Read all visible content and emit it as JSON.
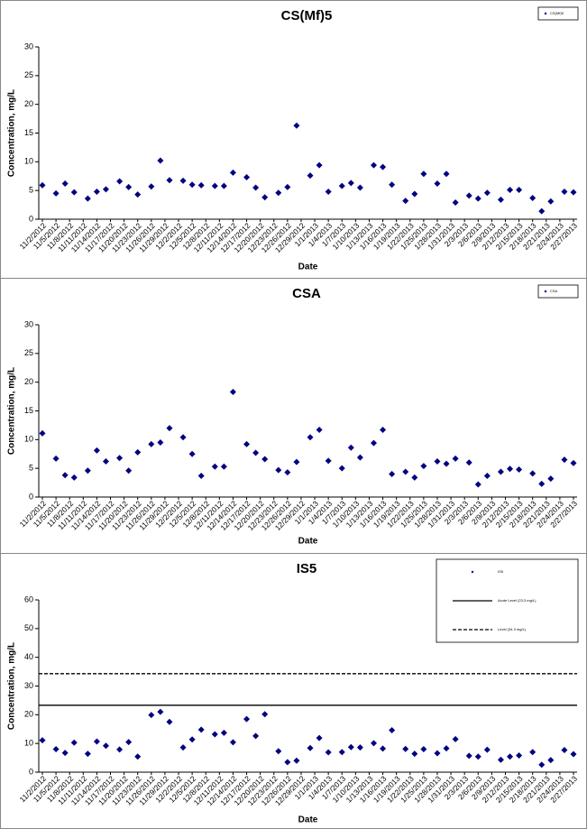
{
  "chart_data": [
    {
      "type": "scatter",
      "title": "CS(Mf)5",
      "xlabel": "Date",
      "ylabel": "Concentration, mg/L",
      "legend": "upper right",
      "x": [
        "11/2/2012",
        "11/5/2012",
        "11/7/2012",
        "11/9/2012",
        "11/12/2012",
        "11/14/2012",
        "11/16/2012",
        "11/19/2012",
        "11/21/2012",
        "11/23/2012",
        "11/26/2012",
        "11/28/2012",
        "11/30/2012",
        "12/3/2012",
        "12/5/2012",
        "12/7/2012",
        "12/10/2012",
        "12/12/2012",
        "12/14/2012",
        "12/17/2012",
        "12/19/2012",
        "12/21/2012",
        "12/24/2012",
        "12/26/2012",
        "12/28/2012",
        "12/31/2012",
        "1/2/2013",
        "1/4/2013",
        "1/7/2013",
        "1/9/2013",
        "1/11/2013",
        "1/14/2013",
        "1/16/2013",
        "1/18/2013",
        "1/21/2013",
        "1/23/2013",
        "1/25/2013",
        "1/28/2013",
        "1/30/2013",
        "2/1/2013",
        "2/4/2013",
        "2/6/2013",
        "2/8/2013",
        "2/11/2013",
        "2/13/2013",
        "2/15/2013",
        "2/18/2013",
        "2/20/2013",
        "2/22/2013",
        "2/25/2013",
        "2/27/2013"
      ],
      "series": [
        {
          "name": "CS(Mf)5",
          "color": "#000080",
          "values": [
            5.9,
            4.5,
            6.2,
            4.7,
            3.6,
            4.8,
            5.2,
            6.6,
            5.6,
            4.3,
            5.7,
            10.2,
            6.8,
            6.7,
            6.0,
            5.9,
            5.8,
            5.8,
            8.1,
            7.3,
            5.5,
            3.8,
            4.6,
            5.6,
            16.3,
            7.6,
            9.4,
            4.8,
            5.8,
            6.3,
            5.5,
            9.4,
            9.1,
            6.0,
            3.2,
            4.4,
            7.9,
            6.2,
            7.9,
            2.9,
            4.1,
            3.6,
            4.6,
            3.4,
            5.1,
            5.1,
            3.7,
            1.4,
            3.1,
            4.8,
            4.7
          ]
        }
      ],
      "xlim": [
        "11/2/2012",
        "2/27/2013"
      ],
      "xticks": [
        "11/2/2012",
        "11/5/2012",
        "11/8/2012",
        "11/11/2012",
        "11/14/2012",
        "11/17/2012",
        "11/20/2012",
        "11/23/2012",
        "11/26/2012",
        "11/29/2012",
        "12/2/2012",
        "12/5/2012",
        "12/8/2012",
        "12/11/2012",
        "12/14/2012",
        "12/17/2012",
        "12/20/2012",
        "12/23/2012",
        "12/26/2012",
        "12/29/2012",
        "1/1/2013",
        "1/4/2013",
        "1/7/2013",
        "1/10/2013",
        "1/13/2013",
        "1/16/2013",
        "1/19/2013",
        "1/22/2013",
        "1/25/2013",
        "1/28/2013",
        "1/31/2013",
        "2/3/2013",
        "2/6/2013",
        "2/9/2013",
        "2/12/2013",
        "2/15/2013",
        "2/18/2013",
        "2/21/2013",
        "2/24/2013",
        "2/27/2013"
      ],
      "ylim": [
        0,
        30
      ],
      "yticks": [
        0,
        5,
        10,
        15,
        20,
        25,
        30
      ]
    },
    {
      "type": "scatter",
      "title": "CSA",
      "xlabel": "Date",
      "ylabel": "Concentration, mg/L",
      "legend": "upper right",
      "x": [
        "11/2/2012",
        "11/5/2012",
        "11/7/2012",
        "11/9/2012",
        "11/12/2012",
        "11/14/2012",
        "11/16/2012",
        "11/19/2012",
        "11/21/2012",
        "11/23/2012",
        "11/26/2012",
        "11/28/2012",
        "11/30/2012",
        "12/3/2012",
        "12/5/2012",
        "12/7/2012",
        "12/10/2012",
        "12/12/2012",
        "12/14/2012",
        "12/17/2012",
        "12/19/2012",
        "12/21/2012",
        "12/24/2012",
        "12/26/2012",
        "12/28/2012",
        "12/31/2012",
        "1/2/2013",
        "1/4/2013",
        "1/7/2013",
        "1/9/2013",
        "1/11/2013",
        "1/14/2013",
        "1/16/2013",
        "1/18/2013",
        "1/21/2013",
        "1/23/2013",
        "1/25/2013",
        "1/28/2013",
        "1/30/2013",
        "2/1/2013",
        "2/4/2013",
        "2/6/2013",
        "2/8/2013",
        "2/11/2013",
        "2/13/2013",
        "2/15/2013",
        "2/18/2013",
        "2/20/2013",
        "2/22/2013",
        "2/25/2013",
        "2/27/2013"
      ],
      "series": [
        {
          "name": "CSA",
          "color": "#000080",
          "values": [
            11.1,
            6.7,
            3.8,
            3.4,
            4.6,
            8.1,
            6.2,
            6.8,
            4.6,
            7.8,
            9.2,
            9.5,
            12.0,
            10.4,
            7.5,
            3.7,
            5.3,
            5.3,
            18.3,
            9.2,
            7.7,
            6.6,
            4.7,
            4.3,
            6.1,
            10.4,
            11.7,
            6.3,
            5.0,
            8.6,
            6.9,
            9.4,
            11.7,
            4.0,
            4.4,
            3.4,
            5.4,
            6.2,
            5.8,
            6.7,
            6.0,
            2.2,
            3.7,
            4.4,
            4.9,
            4.8,
            4.1,
            2.3,
            3.2,
            6.5,
            5.9
          ]
        }
      ],
      "xlim": [
        "11/2/2012",
        "2/27/2013"
      ],
      "xticks": [
        "11/2/2012",
        "11/5/2012",
        "11/8/2012",
        "11/11/2012",
        "11/14/2012",
        "11/17/2012",
        "11/20/2012",
        "11/23/2012",
        "11/26/2012",
        "11/29/2012",
        "12/2/2012",
        "12/5/2012",
        "12/8/2012",
        "12/11/2012",
        "12/14/2012",
        "12/17/2012",
        "12/20/2012",
        "12/23/2012",
        "12/26/2012",
        "12/29/2012",
        "1/1/2013",
        "1/4/2013",
        "1/7/2013",
        "1/10/2013",
        "1/13/2013",
        "1/16/2013",
        "1/19/2013",
        "1/22/2013",
        "1/25/2013",
        "1/28/2013",
        "1/31/2013",
        "2/3/2013",
        "2/6/2013",
        "2/9/2013",
        "2/12/2013",
        "2/15/2013",
        "2/18/2013",
        "2/21/2013",
        "2/24/2013",
        "2/27/2013"
      ],
      "ylim": [
        0,
        30
      ],
      "yticks": [
        0,
        5,
        10,
        15,
        20,
        25,
        30
      ]
    },
    {
      "type": "scatter",
      "title": "IS5",
      "xlabel": "Date",
      "ylabel": "Concentration, mg/L",
      "legend": "upper right",
      "x": [
        "11/2/2012",
        "11/5/2012",
        "11/7/2012",
        "11/9/2012",
        "11/12/2012",
        "11/14/2012",
        "11/16/2012",
        "11/19/2012",
        "11/21/2012",
        "11/23/2012",
        "11/26/2012",
        "11/28/2012",
        "11/30/2012",
        "12/3/2012",
        "12/5/2012",
        "12/7/2012",
        "12/10/2012",
        "12/12/2012",
        "12/14/2012",
        "12/17/2012",
        "12/19/2012",
        "12/21/2012",
        "12/24/2012",
        "12/26/2012",
        "12/28/2012",
        "12/31/2012",
        "1/2/2013",
        "1/4/2013",
        "1/7/2013",
        "1/9/2013",
        "1/11/2013",
        "1/14/2013",
        "1/16/2013",
        "1/18/2013",
        "1/21/2013",
        "1/23/2013",
        "1/25/2013",
        "1/28/2013",
        "1/30/2013",
        "2/1/2013",
        "2/4/2013",
        "2/6/2013",
        "2/8/2013",
        "2/11/2013",
        "2/13/2013",
        "2/15/2013",
        "2/18/2013",
        "2/20/2013",
        "2/22/2013",
        "2/25/2013",
        "2/27/2013"
      ],
      "series": [
        {
          "name": "IS5",
          "color": "#000080",
          "values": [
            11.1,
            8.0,
            6.7,
            10.3,
            6.4,
            10.7,
            9.2,
            7.9,
            10.5,
            5.4,
            19.9,
            21.0,
            17.5,
            8.6,
            11.4,
            14.8,
            13.2,
            13.7,
            10.4,
            18.5,
            12.6,
            20.2,
            7.3,
            3.5,
            4.0,
            8.4,
            11.9,
            6.9,
            7.0,
            8.7,
            8.6,
            10.1,
            8.2,
            14.6,
            8.1,
            6.4,
            8.0,
            6.6,
            8.3,
            11.5,
            5.7,
            5.4,
            7.8,
            4.3,
            5.4,
            5.8,
            7.0,
            2.6,
            4.2,
            7.7,
            6.3
          ]
        }
      ],
      "hlines": [
        {
          "name": "Acute Level (23.3 mg/L)",
          "value": 23.3,
          "style": "solid",
          "color": "#000000"
        },
        {
          "name": "Level (34.3 mg/L)",
          "value": 34.3,
          "style": "dashed",
          "color": "#000000"
        }
      ],
      "xlim": [
        "11/2/2012",
        "2/27/2013"
      ],
      "xticks": [
        "11/2/2012",
        "11/5/2012",
        "11/8/2012",
        "11/11/2012",
        "11/14/2012",
        "11/17/2012",
        "11/20/2012",
        "11/23/2012",
        "11/26/2012",
        "11/29/2012",
        "12/2/2012",
        "12/5/2012",
        "12/8/2012",
        "12/11/2012",
        "12/14/2012",
        "12/17/2012",
        "12/20/2012",
        "12/23/2012",
        "12/26/2012",
        "12/29/2012",
        "1/1/2013",
        "1/4/2013",
        "1/7/2013",
        "1/10/2013",
        "1/13/2013",
        "1/16/2013",
        "1/19/2013",
        "1/22/2013",
        "1/25/2013",
        "1/28/2013",
        "1/31/2013",
        "2/3/2013",
        "2/6/2013",
        "2/9/2013",
        "2/12/2013",
        "2/15/2013",
        "2/18/2013",
        "2/21/2013",
        "2/24/2013",
        "2/27/2013"
      ],
      "ylim": [
        0,
        60
      ],
      "yticks": [
        0,
        10,
        20,
        30,
        40,
        50,
        60
      ]
    }
  ]
}
